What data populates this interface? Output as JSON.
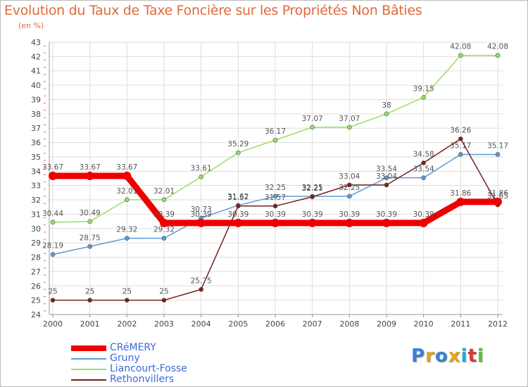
{
  "header": {
    "title": "Evolution du Taux de Taxe Foncière sur les Propriétés Non Bâties",
    "unit": "(en %)"
  },
  "logo": {
    "text": "Proxiti",
    "colors": [
      "#3a7fd9",
      "#e8a317",
      "#3a7fd9",
      "#e8a317",
      "#2aa8d8",
      "#d23a3a",
      "#5bbf3a"
    ]
  },
  "chart_data": {
    "type": "line",
    "title": "Evolution du Taux de Taxe Foncière sur les Propriétés Non Bâties",
    "ylabel": "(en %)",
    "xlabel": "",
    "x": [
      "2000",
      "2001",
      "2002",
      "2003",
      "2004",
      "2005",
      "2006",
      "2007",
      "2008",
      "2009",
      "2010",
      "2011",
      "2012"
    ],
    "ylim": [
      24,
      43
    ],
    "yticks": [
      24,
      25,
      26,
      27,
      28,
      29,
      30,
      31,
      32,
      33,
      34,
      35,
      36,
      37,
      38,
      39,
      40,
      41,
      42,
      43
    ],
    "grid": "horizontal",
    "legend": "bottom-left",
    "series": [
      {
        "name": "CRéMERY",
        "color": "#ee0000",
        "values": [
          33.67,
          33.67,
          33.67,
          30.39,
          30.39,
          30.39,
          30.39,
          30.39,
          30.39,
          30.39,
          30.39,
          31.86,
          31.86
        ],
        "labels": [
          "33.67",
          "33.67",
          "33.67",
          "30.39",
          "30.39",
          "30.39",
          "30.39",
          "30.39",
          "30.39",
          "30.39",
          "30.39",
          "31.86",
          "31.86"
        ]
      },
      {
        "name": "Gruny",
        "color": "#5b9bd5",
        "values": [
          28.19,
          28.75,
          29.32,
          29.32,
          30.73,
          31.62,
          32.25,
          32.25,
          32.25,
          33.54,
          33.54,
          35.17,
          35.17
        ],
        "labels": [
          "28.19",
          "28.75",
          "29.32",
          "29.32",
          "30.73",
          "31.62",
          "32.25",
          "32.25",
          "32.25",
          "33.54",
          "33.54",
          "35.17",
          "35.17"
        ]
      },
      {
        "name": "Liancourt-Fosse",
        "color": "#99dd66",
        "values": [
          30.44,
          30.49,
          32.01,
          32.01,
          33.61,
          35.29,
          36.17,
          37.07,
          37.07,
          38,
          39.15,
          42.08,
          42.08
        ],
        "labels": [
          "30.44",
          "30.49",
          "32.01",
          "32.01",
          "33.61",
          "35.29",
          "36.17",
          "37.07",
          "37.07",
          "38",
          "39.15",
          "42.08",
          "42.08"
        ]
      },
      {
        "name": "Rethonvillers",
        "color": "#7a2020",
        "values": [
          25,
          25,
          25,
          25,
          25.75,
          31.57,
          31.57,
          32.21,
          33.04,
          33.04,
          34.58,
          36.26,
          31.65
        ],
        "labels": [
          "25",
          "25",
          "25",
          "25",
          "25.75",
          "31.57",
          "31.57",
          "32.21",
          "33.04",
          "33.04",
          "34.58",
          "36.26",
          "31.65"
        ]
      }
    ]
  }
}
